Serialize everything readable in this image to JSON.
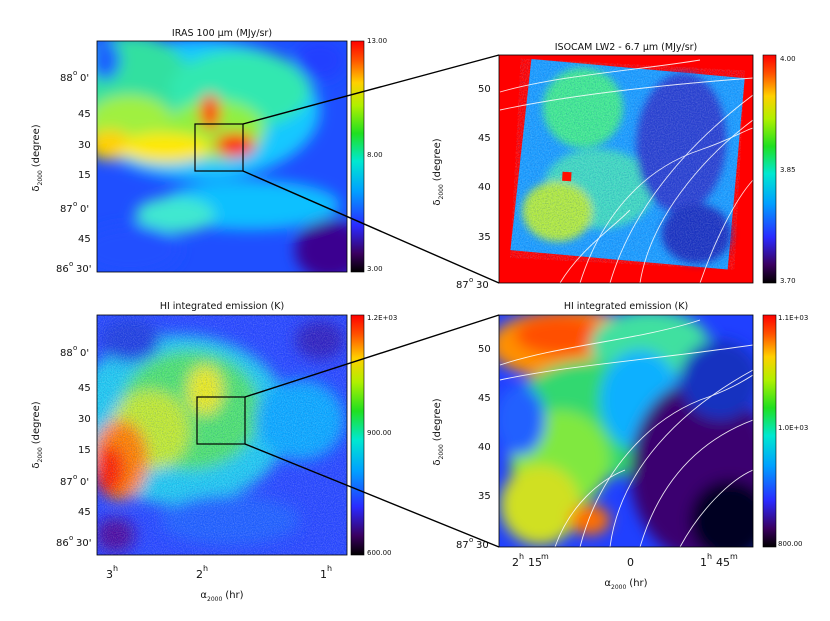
{
  "chart_data": [
    {
      "type": "heatmap",
      "title": "IRAS 100 µm (MJy/sr)",
      "ylabel": "δ₂₀₀₀ (degree)",
      "ytick_labels": [
        "88° 0'",
        "45",
        "30",
        "15",
        "87° 0'",
        "45",
        "86° 30'"
      ],
      "colorbar": {
        "ticks": [
          "13.00",
          "8.00",
          "3.00"
        ],
        "range": [
          3.0,
          13.0
        ]
      },
      "rgb_note": "rainbow"
    },
    {
      "type": "heatmap",
      "title": "ISOCAM LW2 - 6.7 µm (MJy/sr)",
      "ylabel": "δ₂₀₀₀ (degree)",
      "ytick_labels": [
        "50",
        "45",
        "40",
        "35",
        "87° 30"
      ],
      "colorbar": {
        "ticks": [
          "4.00",
          "3.85",
          "3.70"
        ],
        "range": [
          3.7,
          4.0
        ]
      }
    },
    {
      "type": "heatmap",
      "title": "HI integrated emission (K)",
      "ylabel": "δ₂₀₀₀ (degree)",
      "xlabel": "α₂₀₀₀ (hr)",
      "ytick_labels": [
        "88° 0'",
        "45",
        "30",
        "15",
        "87° 0'",
        "45",
        "86° 30'"
      ],
      "xtick_labels": [
        "3h",
        "2h",
        "1h"
      ],
      "colorbar": {
        "ticks": [
          "1.2E+03",
          "900.00",
          "600.00"
        ]
      }
    },
    {
      "type": "heatmap",
      "title": "HI integrated emission (K)",
      "ylabel": "δ₂₀₀₀ (degree)",
      "xlabel": "α₂₀₀₀ (hr)",
      "ytick_labels": [
        "50",
        "45",
        "40",
        "35",
        "87° 30"
      ],
      "xtick_labels": [
        "2h 15m",
        "0",
        "1h 45m"
      ],
      "colorbar": {
        "ticks": [
          "1.1E+03",
          "1.0E+03",
          "800.00"
        ]
      }
    }
  ],
  "labels": {
    "p1_title": "IRAS 100 µm (MJy/sr)",
    "p2_title": "ISOCAM LW2 - 6.7 µm (MJy/sr)",
    "p3_title": "HI integrated emission (K)",
    "p4_title": "HI integrated emission (K)",
    "delta": "δ",
    "delta_sub": "2000",
    "alpha": "α",
    "alpha_sub": "2000",
    "ydeg": "(degree)",
    "xhr": "(hr)",
    "p1_cb_top": "13.00",
    "p1_cb_mid": "8.00",
    "p1_cb_bot": "3.00",
    "p2_cb_top": "4.00",
    "p2_cb_mid": "3.85",
    "p2_cb_bot": "3.70",
    "p3_cb_top": "1.2E+03",
    "p3_cb_mid": "900.00",
    "p3_cb_bot": "600.00",
    "p4_cb_top": "1.1E+03",
    "p4_cb_mid": "1.0E+03",
    "p4_cb_bot": "800.00",
    "l_y1": "88",
    "l_y1b": "0'",
    "l_y2": "45",
    "l_y3": "30",
    "l_y4": "15",
    "l_y5": "87",
    "l_y5b": "0'",
    "l_y6": "45",
    "l_y7": "86",
    "l_y7b": "30'",
    "r_y1": "50",
    "r_y2": "45",
    "r_y3": "40",
    "r_y4": "35",
    "r_y5": "87",
    "r_y5b": "30",
    "x3": "3",
    "x2": "2",
    "x1": "1",
    "xh": "h",
    "x4a": "2",
    "x4b": "15",
    "x4c": "0",
    "x4d": "1",
    "x4e": "45",
    "xm": "m",
    "deg": "o"
  }
}
